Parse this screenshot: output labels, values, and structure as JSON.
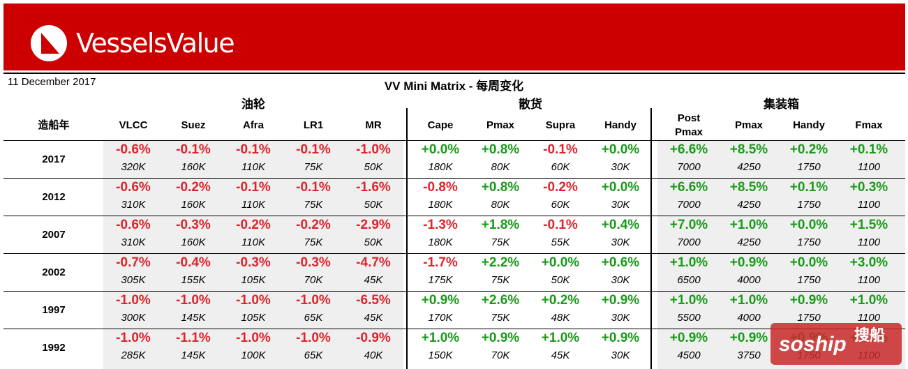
{
  "brand": {
    "name": "VesselsValue",
    "logo_icon": "vv-triangle-logo-icon"
  },
  "header": {
    "date": "11 December 2017",
    "title": "VV Mini Matrix - 每周变化"
  },
  "groups": [
    "油轮",
    "散货",
    "集装箱"
  ],
  "columns": {
    "year_header": "造船年",
    "tanker": [
      "VLCC",
      "Suez",
      "Afra",
      "LR1",
      "MR"
    ],
    "bulk": [
      "Cape",
      "Pmax",
      "Supra",
      "Handy"
    ],
    "container": [
      "Post\nPmax",
      "Pmax",
      "Handy",
      "Fmax"
    ]
  },
  "rows": [
    {
      "year": "2017",
      "tanker": [
        [
          "-0.6%",
          "320K"
        ],
        [
          "-0.1%",
          "160K"
        ],
        [
          "-0.1%",
          "110K"
        ],
        [
          "-0.1%",
          "75K"
        ],
        [
          "-1.0%",
          "50K"
        ]
      ],
      "bulk": [
        [
          "+0.0%",
          "180K"
        ],
        [
          "+0.8%",
          "80K"
        ],
        [
          "-0.1%",
          "60K"
        ],
        [
          "+0.0%",
          "30K"
        ]
      ],
      "container": [
        [
          "+6.6%",
          "7000"
        ],
        [
          "+8.5%",
          "4250"
        ],
        [
          "+0.2%",
          "1750"
        ],
        [
          "+0.1%",
          "1100"
        ]
      ]
    },
    {
      "year": "2012",
      "tanker": [
        [
          "-0.6%",
          "310K"
        ],
        [
          "-0.2%",
          "160K"
        ],
        [
          "-0.1%",
          "110K"
        ],
        [
          "-0.1%",
          "75K"
        ],
        [
          "-1.6%",
          "50K"
        ]
      ],
      "bulk": [
        [
          "-0.8%",
          "180K"
        ],
        [
          "+0.8%",
          "80K"
        ],
        [
          "-0.2%",
          "60K"
        ],
        [
          "+0.0%",
          "30K"
        ]
      ],
      "container": [
        [
          "+6.6%",
          "7000"
        ],
        [
          "+8.5%",
          "4250"
        ],
        [
          "+0.1%",
          "1750"
        ],
        [
          "+0.3%",
          "1100"
        ]
      ]
    },
    {
      "year": "2007",
      "tanker": [
        [
          "-0.6%",
          "310K"
        ],
        [
          "-0.3%",
          "160K"
        ],
        [
          "-0.2%",
          "110K"
        ],
        [
          "-0.2%",
          "75K"
        ],
        [
          "-2.9%",
          "50K"
        ]
      ],
      "bulk": [
        [
          "-1.3%",
          "180K"
        ],
        [
          "+1.8%",
          "75K"
        ],
        [
          "-0.1%",
          "55K"
        ],
        [
          "+0.4%",
          "30K"
        ]
      ],
      "container": [
        [
          "+7.0%",
          "7000"
        ],
        [
          "+1.0%",
          "4250"
        ],
        [
          "+0.0%",
          "1750"
        ],
        [
          "+1.5%",
          "1100"
        ]
      ]
    },
    {
      "year": "2002",
      "tanker": [
        [
          "-0.7%",
          "305K"
        ],
        [
          "-0.4%",
          "155K"
        ],
        [
          "-0.3%",
          "105K"
        ],
        [
          "-0.3%",
          "70K"
        ],
        [
          "-4.7%",
          "45K"
        ]
      ],
      "bulk": [
        [
          "-1.7%",
          "175K"
        ],
        [
          "+2.2%",
          "75K"
        ],
        [
          "+0.0%",
          "50K"
        ],
        [
          "+0.6%",
          "30K"
        ]
      ],
      "container": [
        [
          "+1.0%",
          "6500"
        ],
        [
          "+0.9%",
          "4000"
        ],
        [
          "+0.0%",
          "1750"
        ],
        [
          "+3.0%",
          "1100"
        ]
      ]
    },
    {
      "year": "1997",
      "tanker": [
        [
          "-1.0%",
          "300K"
        ],
        [
          "-1.0%",
          "145K"
        ],
        [
          "-1.0%",
          "105K"
        ],
        [
          "-1.0%",
          "65K"
        ],
        [
          "-6.5%",
          "45K"
        ]
      ],
      "bulk": [
        [
          "+0.9%",
          "170K"
        ],
        [
          "+2.6%",
          "75K"
        ],
        [
          "+0.2%",
          "48K"
        ],
        [
          "+0.9%",
          "30K"
        ]
      ],
      "container": [
        [
          "+1.0%",
          "5500"
        ],
        [
          "+1.0%",
          "4000"
        ],
        [
          "+0.9%",
          "1750"
        ],
        [
          "+1.0%",
          "1100"
        ]
      ]
    },
    {
      "year": "1992",
      "tanker": [
        [
          "-1.0%",
          "285K"
        ],
        [
          "-1.1%",
          "145K"
        ],
        [
          "-1.0%",
          "100K"
        ],
        [
          "-1.0%",
          "65K"
        ],
        [
          "-0.9%",
          "40K"
        ]
      ],
      "bulk": [
        [
          "+1.0%",
          "150K"
        ],
        [
          "+0.9%",
          "70K"
        ],
        [
          "+1.0%",
          "45K"
        ],
        [
          "+0.9%",
          "30K"
        ]
      ],
      "container": [
        [
          "+0.9%",
          "4500"
        ],
        [
          "+0.9%",
          "3750"
        ],
        [
          "+0.9%",
          "1750"
        ],
        [
          "+1.1%",
          "1100"
        ]
      ]
    }
  ],
  "colors": {
    "brand_red": "#cc0000",
    "negative": "#e0232b",
    "positive": "#1a9a1a",
    "shade": "#efefef"
  },
  "watermark": {
    "latin": "soship",
    "cjk": "搜船"
  }
}
